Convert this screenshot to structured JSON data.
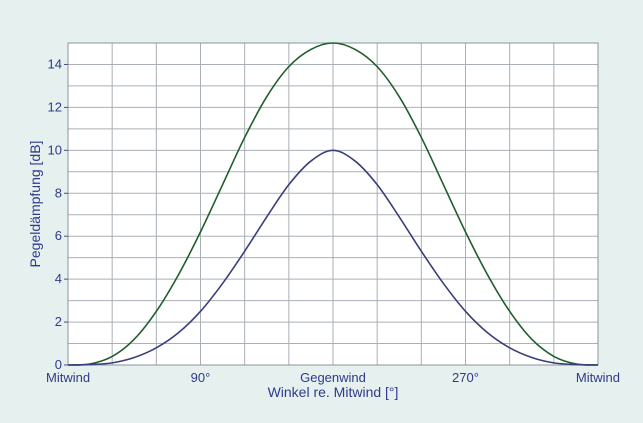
{
  "chart_data": {
    "type": "line",
    "title": "",
    "xlabel": "Winkel re. Mitwind [°]",
    "ylabel": "Pegeldämpfung [dB]",
    "xlim": [
      0,
      360
    ],
    "ylim": [
      0,
      15
    ],
    "grid": true,
    "legend": "none",
    "x_ticks": [
      {
        "value": 0,
        "label": "Mitwind"
      },
      {
        "value": 90,
        "label": "90°"
      },
      {
        "value": 180,
        "label": "Gegenwind"
      },
      {
        "value": 270,
        "label": "270°"
      },
      {
        "value": 360,
        "label": "Mitwind"
      }
    ],
    "y_ticks": [
      0,
      2,
      4,
      6,
      8,
      10,
      12,
      14
    ],
    "x": [
      0,
      15,
      30,
      45,
      60,
      75,
      90,
      105,
      120,
      135,
      150,
      165,
      180,
      195,
      210,
      225,
      240,
      255,
      270,
      285,
      300,
      315,
      330,
      345,
      360
    ],
    "series": [
      {
        "color": "#1f5e2c",
        "values": [
          0,
          0.05,
          0.4,
          1.2,
          2.5,
          4.2,
          6.2,
          8.4,
          10.6,
          12.5,
          13.9,
          14.7,
          15,
          14.7,
          13.9,
          12.5,
          10.6,
          8.4,
          6.2,
          4.2,
          2.5,
          1.2,
          0.4,
          0.05,
          0
        ]
      },
      {
        "color": "#3a3f7a",
        "values": [
          0,
          0.02,
          0.1,
          0.35,
          0.8,
          1.5,
          2.5,
          3.8,
          5.3,
          6.9,
          8.4,
          9.5,
          10,
          9.5,
          8.4,
          6.9,
          5.3,
          3.8,
          2.5,
          1.5,
          0.8,
          0.35,
          0.1,
          0.02,
          0
        ]
      }
    ],
    "colors": {
      "background": "#e6f0ee",
      "plot_background": "#ffffff",
      "grid": "#a9b0b6",
      "text": "#2f3a8c"
    }
  }
}
